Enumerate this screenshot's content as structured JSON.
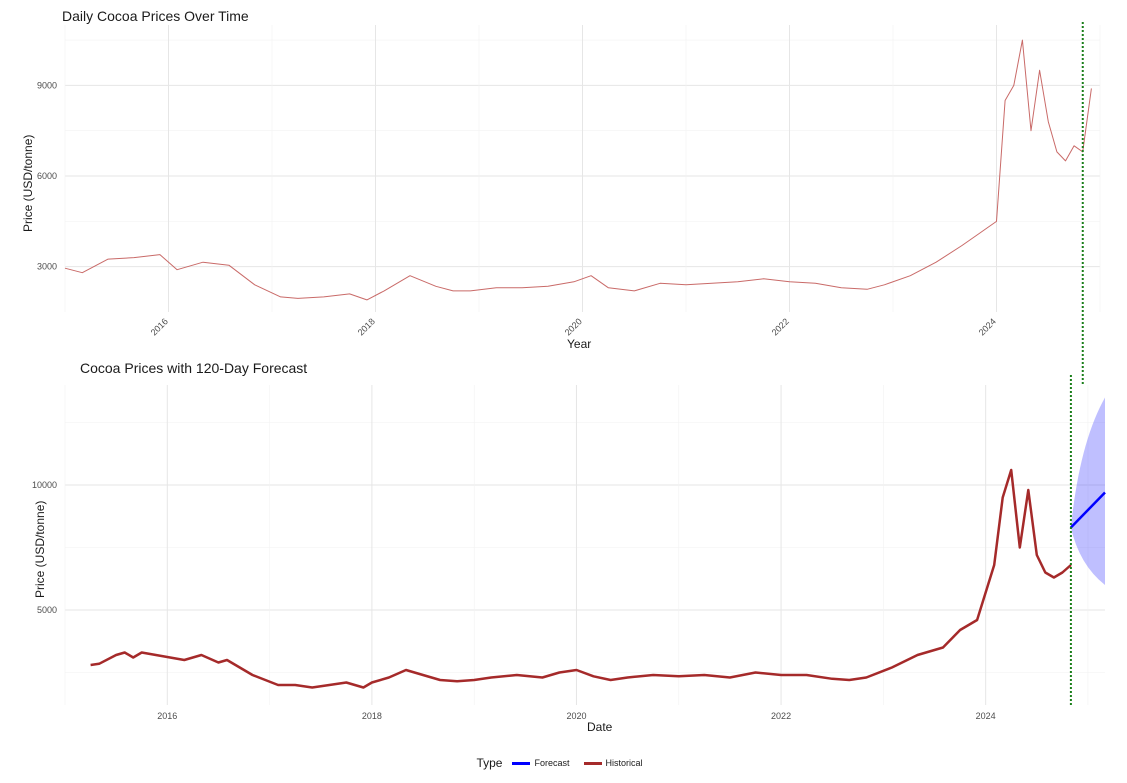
{
  "chart_data": [
    {
      "type": "line",
      "title": "Daily Cocoa Prices Over Time",
      "xlabel": "Year",
      "ylabel": "Price (USD/tonne)",
      "x_ticks": [
        "2016",
        "2018",
        "2020",
        "2022",
        "2024"
      ],
      "y_ticks": [
        3000,
        6000,
        9000
      ],
      "ylim": [
        1500,
        11000
      ],
      "xlim": [
        "2015-01",
        "2025-01"
      ],
      "grid": true,
      "vline_date": "2024-11",
      "series": [
        {
          "color": "#c0504d",
          "x": [
            "2015-01",
            "2015-03",
            "2015-06",
            "2015-09",
            "2015-12",
            "2016-02",
            "2016-05",
            "2016-08",
            "2016-11",
            "2017-02",
            "2017-04",
            "2017-07",
            "2017-10",
            "2017-12",
            "2018-02",
            "2018-05",
            "2018-08",
            "2018-10",
            "2018-12",
            "2019-03",
            "2019-06",
            "2019-09",
            "2019-12",
            "2020-02",
            "2020-04",
            "2020-07",
            "2020-10",
            "2021-01",
            "2021-04",
            "2021-07",
            "2021-10",
            "2022-01",
            "2022-04",
            "2022-07",
            "2022-10",
            "2022-12",
            "2023-03",
            "2023-06",
            "2023-09",
            "2023-11",
            "2023-12",
            "2024-01",
            "2024-02",
            "2024-03",
            "2024-04",
            "2024-05",
            "2024-06",
            "2024-07",
            "2024-08",
            "2024-09",
            "2024-10",
            "2024-11",
            "2024-12"
          ],
          "values": [
            2950,
            2800,
            3250,
            3300,
            3400,
            2900,
            3150,
            3050,
            2400,
            2000,
            1950,
            2000,
            2100,
            1900,
            2200,
            2700,
            2350,
            2200,
            2200,
            2300,
            2300,
            2350,
            2500,
            2700,
            2300,
            2200,
            2450,
            2400,
            2450,
            2500,
            2600,
            2500,
            2450,
            2300,
            2250,
            2400,
            2700,
            3150,
            3700,
            4100,
            4300,
            4500,
            8500,
            9000,
            10500,
            7500,
            9500,
            7800,
            6800,
            6500,
            7000,
            6800,
            8900
          ]
        }
      ]
    },
    {
      "type": "line",
      "title": "Cocoa Prices with 120-Day Forecast",
      "xlabel": "Date",
      "ylabel": "Price (USD/tonne)",
      "x_ticks": [
        "2016",
        "2018",
        "2020",
        "2022",
        "2024"
      ],
      "y_ticks": [
        5000,
        10000
      ],
      "ylim": [
        1200,
        14000
      ],
      "xlim": [
        "2015-01",
        "2025-03"
      ],
      "grid": true,
      "vline_date": "2024-11",
      "legend": {
        "title": "Type",
        "position": "bottom",
        "entries": [
          {
            "label": "Forecast",
            "color": "#0000ff"
          },
          {
            "label": "Historical",
            "color": "#a52a2a"
          }
        ]
      },
      "series": [
        {
          "name": "Historical",
          "color": "#a52a2a",
          "x": [
            "2015-04",
            "2015-05",
            "2015-07",
            "2015-08",
            "2015-09",
            "2015-10",
            "2016-03",
            "2016-05",
            "2016-07",
            "2016-08",
            "2016-10",
            "2016-11",
            "2017-02",
            "2017-04",
            "2017-06",
            "2017-08",
            "2017-10",
            "2017-12",
            "2018-01",
            "2018-03",
            "2018-05",
            "2018-07",
            "2018-09",
            "2018-11",
            "2019-01",
            "2019-03",
            "2019-06",
            "2019-09",
            "2019-11",
            "2020-01",
            "2020-03",
            "2020-05",
            "2020-07",
            "2020-10",
            "2021-01",
            "2021-04",
            "2021-07",
            "2021-10",
            "2022-01",
            "2022-04",
            "2022-07",
            "2022-09",
            "2022-11",
            "2023-02",
            "2023-05",
            "2023-08",
            "2023-10",
            "2023-12",
            "2024-02",
            "2024-03",
            "2024-04",
            "2024-05",
            "2024-06",
            "2024-07",
            "2024-08",
            "2024-09",
            "2024-10",
            "2024-11"
          ],
          "values": [
            2800,
            2850,
            3200,
            3300,
            3100,
            3300,
            3000,
            3200,
            2900,
            3000,
            2600,
            2400,
            2000,
            2000,
            1900,
            2000,
            2100,
            1900,
            2100,
            2300,
            2600,
            2400,
            2200,
            2150,
            2200,
            2300,
            2400,
            2300,
            2500,
            2600,
            2350,
            2200,
            2300,
            2400,
            2350,
            2400,
            2300,
            2500,
            2400,
            2400,
            2250,
            2200,
            2300,
            2700,
            3200,
            3500,
            4200,
            4600,
            6800,
            9500,
            10600,
            7500,
            9800,
            7200,
            6500,
            6300,
            6500,
            6800
          ]
        },
        {
          "name": "Forecast",
          "color": "#0000ff",
          "x": [
            "2024-11",
            "2025-03"
          ],
          "values": [
            8300,
            9700
          ],
          "band_upper": [
            8300,
            13500
          ],
          "band_lower": [
            8300,
            6000
          ]
        }
      ]
    }
  ]
}
